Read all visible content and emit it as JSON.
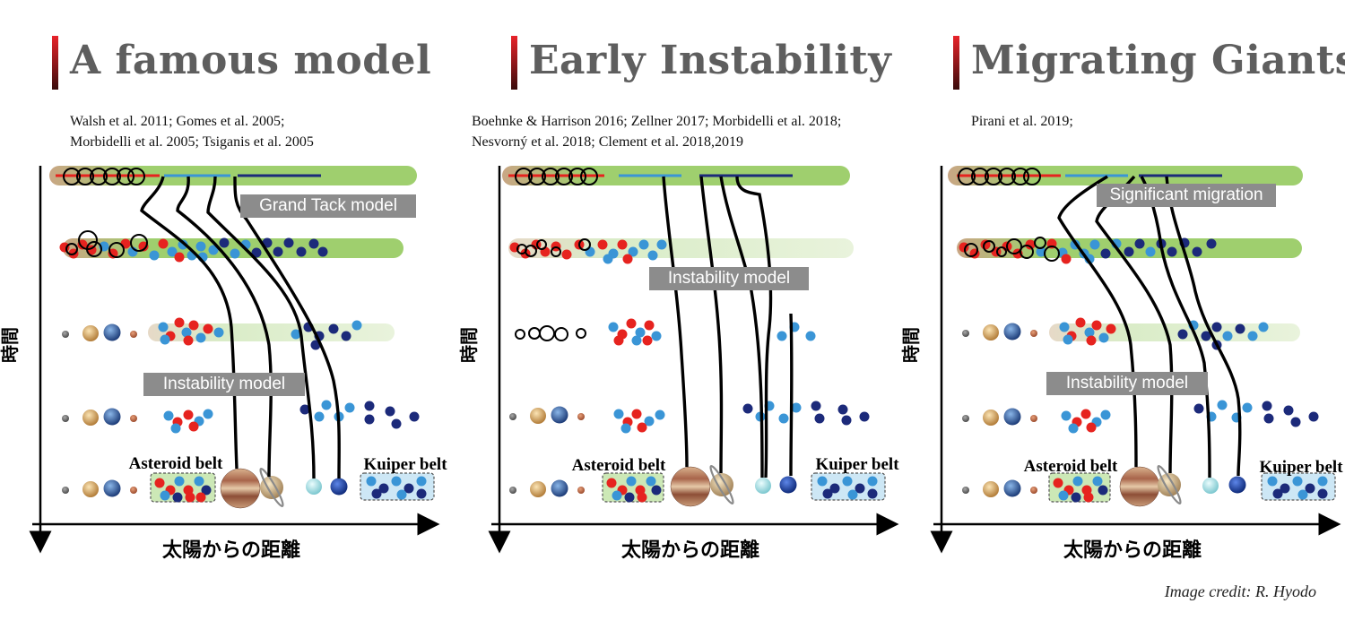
{
  "credit": "Image credit: R. Hyodo",
  "panels": [
    {
      "title": "A famous model",
      "refs": [
        "Walsh et al. 2011; Gomes et al. 2005;",
        "Morbidelli et al. 2005; Tsiganis et al. 2005"
      ],
      "labels": [
        "Grand Tack model",
        "Instability model"
      ],
      "yaxis": "時間",
      "xaxis": "太陽からの距離",
      "asteroid_label": "Asteroid belt",
      "kuiper_label": "Kuiper belt"
    },
    {
      "title": "Early Instability",
      "refs": [
        "Boehnke & Harrison 2016; Zellner 2017; Morbidelli et al. 2018;",
        "Nesvorný et al. 2018; Clement et al. 2018,2019"
      ],
      "labels": [
        "Instability model"
      ],
      "yaxis": "時間",
      "xaxis": "太陽からの距離",
      "asteroid_label": "Asteroid belt",
      "kuiper_label": "Kuiper belt"
    },
    {
      "title": "Migrating Giants",
      "refs": [
        "Pirani et al. 2019;"
      ],
      "labels": [
        "Significant migration",
        "Instability model"
      ],
      "yaxis": "時間",
      "xaxis": "太陽からの距離",
      "asteroid_label": "Asteroid belt",
      "kuiper_label": "Kuiper belt"
    }
  ],
  "colors": {
    "red": "#e6231f",
    "light_blue": "#3a95d6",
    "navy": "#1c2a7a",
    "green_band": "#9fcf6e",
    "label_box": "#8c8c8c"
  }
}
